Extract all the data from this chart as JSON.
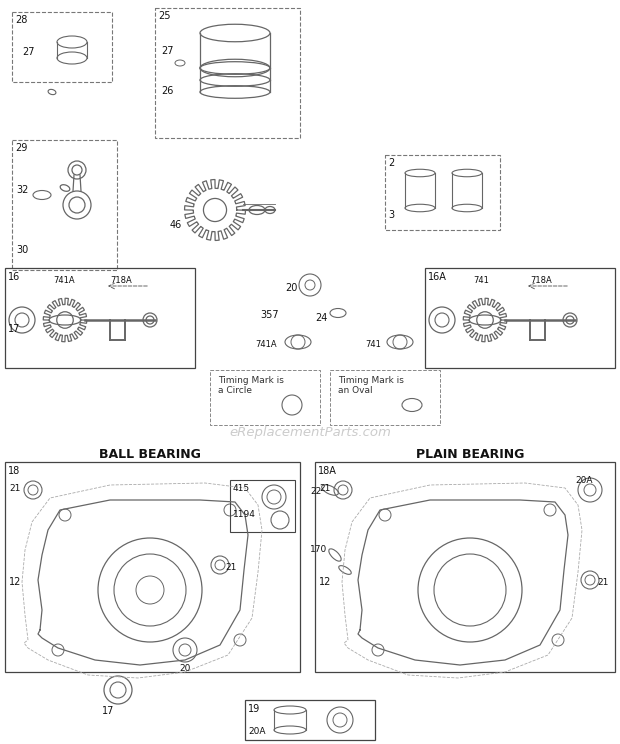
{
  "bg_color": "#ffffff",
  "text_color": "#111111",
  "gray": "#666666",
  "light_gray": "#aaaaaa",
  "watermark_text": "eReplacementParts.com",
  "ball_bearing_title": "BALL BEARING",
  "plain_bearing_title": "PLAIN BEARING",
  "timing_circle_text": "Timing Mark is\na Circle",
  "timing_oval_text": "Timing Mark is\nan Oval"
}
